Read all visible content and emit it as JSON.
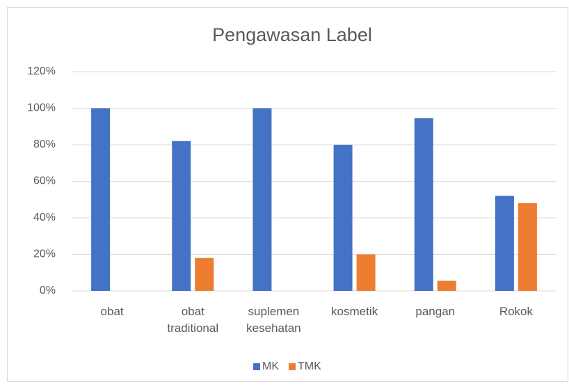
{
  "chart_data": {
    "type": "bar",
    "title": "Pengawasan Label",
    "categories": [
      "obat",
      "obat traditional",
      "suplemen kesehatan",
      "kosmetik",
      "pangan",
      "Rokok"
    ],
    "series": [
      {
        "name": "MK",
        "color": "#4472c4",
        "values": [
          100,
          82,
          100,
          80,
          94.5,
          52
        ]
      },
      {
        "name": "TMK",
        "color": "#ed7d31",
        "values": [
          0,
          18,
          0,
          20,
          5.5,
          48
        ]
      }
    ],
    "ylim": [
      0,
      120
    ],
    "yticks": [
      {
        "value": 0,
        "label": "0%"
      },
      {
        "value": 20,
        "label": "20%"
      },
      {
        "value": 40,
        "label": "40%"
      },
      {
        "value": 60,
        "label": "60%"
      },
      {
        "value": 80,
        "label": "80%"
      },
      {
        "value": 100,
        "label": "100%"
      },
      {
        "value": 120,
        "label": "120%"
      }
    ],
    "grid": true,
    "legend": "bottom"
  }
}
